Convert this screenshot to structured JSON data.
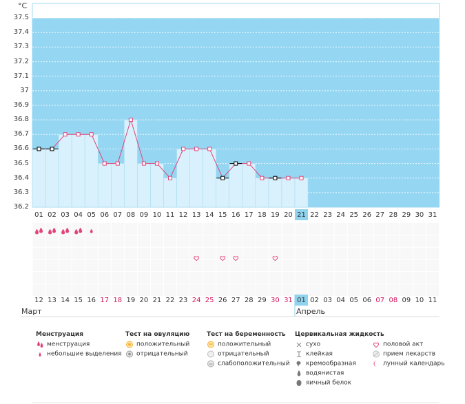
{
  "unit_label": "°C",
  "chart_data": {
    "type": "bar",
    "title": "",
    "ylabel": "°C",
    "ylim": [
      36.2,
      37.6
    ],
    "yticks": [
      36.2,
      36.3,
      36.4,
      36.5,
      36.6,
      36.7,
      36.8,
      36.9,
      37,
      37.1,
      37.2,
      37.3,
      37.4,
      37.5
    ],
    "ytick_labels": [
      "36.2",
      "36.3",
      "36.4",
      "36.5",
      "36.6",
      "36.7",
      "36.8",
      "36.9",
      "37",
      "37.1",
      "37.2",
      "37.3",
      "37.4",
      "37.5"
    ],
    "highlight_band": [
      36.2,
      37.5
    ],
    "cycle_days": [
      "01",
      "02",
      "03",
      "04",
      "05",
      "06",
      "07",
      "08",
      "09",
      "10",
      "11",
      "12",
      "13",
      "14",
      "15",
      "16",
      "17",
      "18",
      "19",
      "20",
      "21",
      "22",
      "23",
      "24",
      "25",
      "26",
      "27",
      "28",
      "29",
      "30",
      "31"
    ],
    "selected_day_index": 20,
    "temperatures": [
      36.6,
      36.6,
      36.7,
      36.7,
      36.7,
      36.5,
      36.5,
      36.8,
      36.5,
      36.5,
      36.4,
      36.6,
      36.6,
      36.6,
      36.4,
      36.5,
      36.5,
      36.4,
      36.4,
      36.4,
      36.4
    ],
    "marker_kind": [
      "excluded",
      "excluded",
      "normal",
      "normal",
      "normal",
      "normal",
      "normal",
      "normal",
      "normal",
      "normal",
      "normal",
      "normal",
      "normal",
      "normal",
      "excluded",
      "excluded",
      "normal",
      "normal",
      "excluded",
      "normal",
      "normal"
    ],
    "menstruation": [
      2,
      2,
      2,
      2,
      1,
      0,
      0,
      0,
      0,
      0,
      0,
      0,
      0,
      0,
      0,
      0,
      0,
      0,
      0,
      0,
      0,
      0,
      0,
      0,
      0,
      0,
      0,
      0,
      0,
      0,
      0
    ],
    "intercourse_day_indices": [
      12,
      14,
      15,
      18
    ],
    "dates": [
      "12",
      "13",
      "14",
      "15",
      "16",
      "17",
      "18",
      "19",
      "20",
      "21",
      "22",
      "23",
      "24",
      "25",
      "26",
      "27",
      "28",
      "29",
      "30",
      "31",
      "01",
      "02",
      "03",
      "04",
      "05",
      "06",
      "07",
      "08",
      "09",
      "10",
      "11"
    ],
    "date_is_weekend": [
      false,
      false,
      false,
      false,
      false,
      true,
      true,
      false,
      false,
      false,
      false,
      false,
      true,
      true,
      false,
      false,
      false,
      false,
      true,
      true,
      false,
      false,
      false,
      false,
      false,
      false,
      true,
      true,
      false,
      false,
      false
    ],
    "months": [
      {
        "label": "Март",
        "start_index": 0
      },
      {
        "label": "Апрель",
        "start_index": 20
      }
    ]
  },
  "legend": {
    "groups": [
      {
        "title": "Менструация",
        "items": [
          {
            "icon": "drop-double-icon",
            "label": "менструация",
            "color": "#e0457b"
          },
          {
            "icon": "drop-small-icon",
            "label": "небольшие выделения",
            "color": "#e0457b"
          }
        ]
      },
      {
        "title": "Тест на овуляцию",
        "items": [
          {
            "icon": "ovulation-positive-icon",
            "label": "положительный",
            "color": "#f5b335"
          },
          {
            "icon": "ovulation-negative-icon",
            "label": "отрицательный",
            "color": "#9a9a9a"
          }
        ]
      },
      {
        "title": "Тест на беременность",
        "items": [
          {
            "icon": "pregnancy-positive-icon",
            "label": "положительный",
            "color": "#f5b335"
          },
          {
            "icon": "pregnancy-negative-icon",
            "label": "отрицательный",
            "color": "#bbbbbb"
          },
          {
            "icon": "pregnancy-weak-icon",
            "label": "слабоположительный",
            "color": "#aaaaaa"
          }
        ]
      },
      {
        "title": "Цервикальная жидкость",
        "items": [
          {
            "icon": "dry-icon",
            "label": "сухо",
            "color": "#888888"
          },
          {
            "icon": "sticky-icon",
            "label": "клейкая",
            "color": "#888888"
          },
          {
            "icon": "creamy-icon",
            "label": "кремообразная",
            "color": "#777777"
          },
          {
            "icon": "watery-icon",
            "label": "водянистая",
            "color": "#777777"
          },
          {
            "icon": "egg-white-icon",
            "label": "яичный белок",
            "color": "#777777"
          }
        ]
      },
      {
        "title": "",
        "items": [
          {
            "icon": "heart-icon",
            "label": "половой акт",
            "color": "#e0457b"
          },
          {
            "icon": "pill-icon",
            "label": "прием лекарств",
            "color": "#bbbbbb"
          },
          {
            "icon": "moon-icon",
            "label": "лунный календарь",
            "color": "#e0457b"
          }
        ]
      }
    ]
  }
}
